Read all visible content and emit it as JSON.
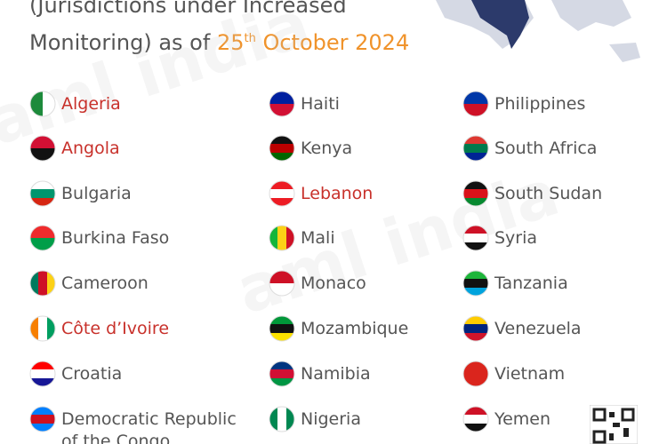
{
  "header": {
    "line1": "(Jurisdictions under Increased",
    "line2": "Monitoring) as of ",
    "date_day": "25",
    "date_suffix": "th",
    "date_rest": " October 2024"
  },
  "watermark": "aml india",
  "columns": [
    [
      {
        "name": "Algeria",
        "highlighted": true
      },
      {
        "name": "Angola",
        "highlighted": true
      },
      {
        "name": "Bulgaria",
        "highlighted": false
      },
      {
        "name": "Burkina Faso",
        "highlighted": false
      },
      {
        "name": "Cameroon",
        "highlighted": false
      },
      {
        "name": "Côte d’Ivoire",
        "highlighted": true
      },
      {
        "name": "Croatia",
        "highlighted": false
      },
      {
        "name": "Democratic Republic of the Congo",
        "highlighted": false
      }
    ],
    [
      {
        "name": "Haiti",
        "highlighted": false
      },
      {
        "name": "Kenya",
        "highlighted": false
      },
      {
        "name": "Lebanon",
        "highlighted": true
      },
      {
        "name": "Mali",
        "highlighted": false
      },
      {
        "name": "Monaco",
        "highlighted": false
      },
      {
        "name": "Mozambique",
        "highlighted": false
      },
      {
        "name": "Namibia",
        "highlighted": false
      },
      {
        "name": "Nigeria",
        "highlighted": false
      }
    ],
    [
      {
        "name": "Philippines",
        "highlighted": false
      },
      {
        "name": "South Africa",
        "highlighted": false
      },
      {
        "name": "South Sudan",
        "highlighted": false
      },
      {
        "name": "Syria",
        "highlighted": false
      },
      {
        "name": "Tanzania",
        "highlighted": false
      },
      {
        "name": "Venezuela",
        "highlighted": false
      },
      {
        "name": "Vietnam",
        "highlighted": false
      },
      {
        "name": "Yemen",
        "highlighted": false
      }
    ]
  ]
}
